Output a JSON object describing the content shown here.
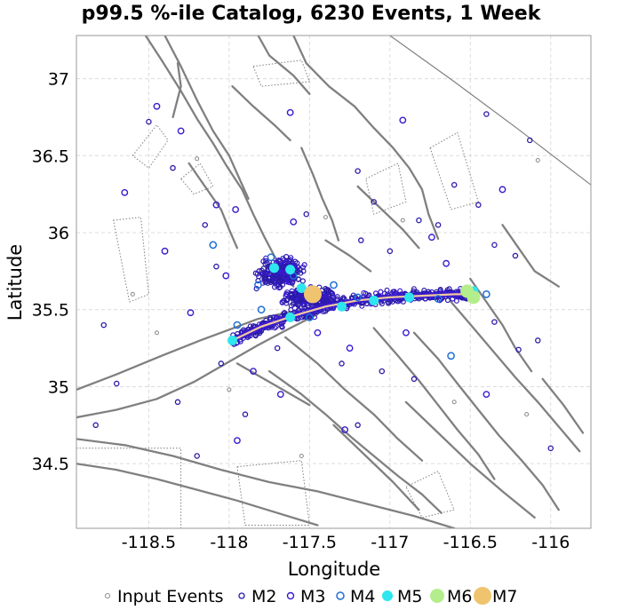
{
  "chart_data": {
    "type": "scatter",
    "title": "p99.5 %-ile Catalog, 6230 Events, 1 Week",
    "xlabel": "Longitude",
    "ylabel": "Latitude",
    "xlim": [
      -118.95,
      -115.75
    ],
    "ylim": [
      34.08,
      37.28
    ],
    "xticks": [
      -118.5,
      -118,
      -117.5,
      -117,
      -116.5,
      -116
    ],
    "yticks": [
      34.5,
      35,
      35.5,
      36,
      36.5,
      37
    ],
    "xtick_labels": [
      "-118.5",
      "-118",
      "-117.5",
      "-117",
      "-116.5",
      "-116"
    ],
    "ytick_labels": [
      "34.5",
      "35",
      "35.5",
      "36",
      "36.5",
      "37"
    ],
    "grid": true,
    "legend_placement": "bottom",
    "legend": [
      {
        "label": "Input Events",
        "marker": "small-open-circle",
        "color": "#888888"
      },
      {
        "label": "M2",
        "marker": "open-circle",
        "color": "#2a1aa8"
      },
      {
        "label": "M3",
        "marker": "open-circle",
        "color": "#3a1ad0"
      },
      {
        "label": "M4",
        "marker": "open-circle",
        "color": "#1e6fd8"
      },
      {
        "label": "M5",
        "marker": "filled-circle",
        "color": "#2ee6ee"
      },
      {
        "label": "M6",
        "marker": "filled-circle",
        "color": "#b4ee8c"
      },
      {
        "label": "M7",
        "marker": "filled-circle",
        "color": "#f0c46e"
      }
    ],
    "series": [
      {
        "name": "M7",
        "points": [
          [
            -117.48,
            35.6
          ]
        ]
      },
      {
        "name": "M6",
        "points": [
          [
            -116.48,
            35.58
          ],
          [
            -116.52,
            35.62
          ]
        ]
      },
      {
        "name": "M5",
        "points": [
          [
            -117.72,
            35.77
          ],
          [
            -117.62,
            35.76
          ],
          [
            -117.55,
            35.64
          ],
          [
            -117.62,
            35.45
          ],
          [
            -117.98,
            35.3
          ],
          [
            -116.48,
            35.62
          ],
          [
            -117.1,
            35.56
          ],
          [
            -116.88,
            35.58
          ],
          [
            -117.3,
            35.52
          ]
        ]
      },
      {
        "name": "M4",
        "points": [
          [
            -117.74,
            35.84
          ],
          [
            -117.6,
            35.72
          ],
          [
            -117.82,
            35.66
          ],
          [
            -117.95,
            35.4
          ],
          [
            -117.2,
            35.58
          ],
          [
            -116.7,
            35.57
          ],
          [
            -116.4,
            35.6
          ],
          [
            -116.62,
            35.2
          ],
          [
            -118.1,
            35.92
          ],
          [
            -117.35,
            35.66
          ],
          [
            -117.8,
            35.5
          ],
          [
            -117.5,
            35.45
          ]
        ]
      },
      {
        "name": "M3",
        "points": [
          [
            -118.3,
            36.66
          ],
          [
            -118.45,
            36.82
          ],
          [
            -117.62,
            36.78
          ],
          [
            -116.92,
            36.73
          ],
          [
            -116.3,
            36.28
          ],
          [
            -118.65,
            36.26
          ],
          [
            -118.08,
            36.18
          ],
          [
            -117.96,
            36.15
          ],
          [
            -117.6,
            36.07
          ],
          [
            -116.74,
            35.97
          ],
          [
            -118.4,
            35.88
          ],
          [
            -118.02,
            35.72
          ],
          [
            -117.68,
            34.95
          ],
          [
            -117.95,
            34.65
          ],
          [
            -117.85,
            35.1
          ],
          [
            -117.28,
            34.72
          ],
          [
            -116.4,
            34.95
          ],
          [
            -117.25,
            35.25
          ],
          [
            -116.9,
            35.35
          ],
          [
            -116.65,
            35.8
          ],
          [
            -118.24,
            35.48
          ],
          [
            -117.45,
            35.35
          ]
        ]
      },
      {
        "name": "M2",
        "points": [
          [
            -118.35,
            36.42
          ],
          [
            -118.5,
            36.72
          ],
          [
            -117.2,
            36.4
          ],
          [
            -116.6,
            36.31
          ],
          [
            -116.45,
            36.18
          ],
          [
            -116.13,
            36.6
          ],
          [
            -116.4,
            36.77
          ],
          [
            -118.78,
            35.4
          ],
          [
            -118.7,
            35.02
          ],
          [
            -118.32,
            34.9
          ],
          [
            -118.2,
            34.55
          ],
          [
            -117.9,
            34.82
          ],
          [
            -117.2,
            34.75
          ],
          [
            -116.0,
            34.6
          ],
          [
            -116.2,
            35.24
          ],
          [
            -116.08,
            35.3
          ],
          [
            -116.7,
            36.05
          ],
          [
            -118.83,
            34.75
          ],
          [
            -117.52,
            36.12
          ],
          [
            -117.1,
            36.2
          ],
          [
            -116.82,
            36.08
          ],
          [
            -118.15,
            36.05
          ],
          [
            -117.18,
            35.95
          ],
          [
            -116.35,
            35.92
          ],
          [
            -116.22,
            35.85
          ],
          [
            -118.08,
            35.78
          ],
          [
            -117.0,
            35.88
          ],
          [
            -116.85,
            35.05
          ],
          [
            -118.05,
            35.15
          ],
          [
            -117.05,
            35.1
          ],
          [
            -116.35,
            35.42
          ],
          [
            -117.7,
            35.25
          ],
          [
            -117.3,
            35.15
          ]
        ]
      },
      {
        "name": "Input Events",
        "points": [
          [
            -118.2,
            36.48
          ],
          [
            -116.08,
            36.47
          ],
          [
            -117.4,
            36.1
          ],
          [
            -116.92,
            36.08
          ],
          [
            -118.6,
            35.6
          ],
          [
            -118.0,
            34.98
          ],
          [
            -116.6,
            34.9
          ],
          [
            -116.15,
            34.82
          ],
          [
            -117.55,
            34.55
          ],
          [
            -118.45,
            35.35
          ]
        ]
      }
    ],
    "fault_traces": [
      [
        [
          -118.52,
          37.28
        ],
        [
          -118.42,
          37.12
        ],
        [
          -118.3,
          36.92
        ],
        [
          -118.2,
          36.74
        ],
        [
          -118.1,
          36.58
        ],
        [
          -118.02,
          36.44
        ],
        [
          -117.92,
          36.28
        ],
        [
          -117.85,
          36.12
        ],
        [
          -117.78,
          35.97
        ],
        [
          -117.72,
          35.85
        ],
        [
          -117.66,
          35.74
        ],
        [
          -117.6,
          35.65
        ]
      ],
      [
        [
          -118.4,
          37.28
        ],
        [
          -118.3,
          37.08
        ],
        [
          -118.2,
          36.86
        ],
        [
          -118.1,
          36.66
        ],
        [
          -118.0,
          36.5
        ],
        [
          -117.94,
          36.36
        ],
        [
          -117.88,
          36.22
        ]
      ],
      [
        [
          -117.6,
          37.28
        ],
        [
          -117.52,
          37.1
        ],
        [
          -117.38,
          36.95
        ],
        [
          -117.22,
          36.82
        ],
        [
          -117.1,
          36.68
        ],
        [
          -116.98,
          36.55
        ],
        [
          -116.88,
          36.42
        ],
        [
          -116.8,
          36.28
        ],
        [
          -116.76,
          36.12
        ],
        [
          -116.7,
          35.96
        ]
      ],
      [
        [
          -117.82,
          37.28
        ],
        [
          -117.75,
          37.15
        ],
        [
          -117.6,
          37.02
        ],
        [
          -117.5,
          36.9
        ]
      ],
      [
        [
          -118.25,
          36.45
        ],
        [
          -118.15,
          36.3
        ],
        [
          -118.05,
          36.15
        ],
        [
          -118.0,
          36.02
        ],
        [
          -117.95,
          35.9
        ]
      ],
      [
        [
          -117.98,
          36.95
        ],
        [
          -117.85,
          36.82
        ],
        [
          -117.72,
          36.7
        ],
        [
          -117.62,
          36.6
        ]
      ],
      [
        [
          -117.55,
          36.55
        ],
        [
          -117.48,
          36.38
        ],
        [
          -117.42,
          36.22
        ],
        [
          -117.36,
          36.08
        ],
        [
          -117.32,
          35.95
        ]
      ],
      [
        [
          -117.2,
          36.3
        ],
        [
          -117.05,
          36.15
        ],
        [
          -116.92,
          36.02
        ],
        [
          -116.82,
          35.9
        ]
      ],
      [
        [
          -118.95,
          34.98
        ],
        [
          -118.7,
          35.08
        ],
        [
          -118.42,
          35.2
        ],
        [
          -118.18,
          35.3
        ],
        [
          -118.0,
          35.37
        ],
        [
          -117.82,
          35.44
        ],
        [
          -117.6,
          35.49
        ],
        [
          -117.35,
          35.54
        ],
        [
          -117.1,
          35.58
        ],
        [
          -116.85,
          35.6
        ],
        [
          -116.62,
          35.61
        ],
        [
          -116.48,
          35.6
        ]
      ],
      [
        [
          -118.95,
          34.8
        ],
        [
          -118.7,
          34.85
        ],
        [
          -118.45,
          34.92
        ],
        [
          -118.22,
          35.03
        ],
        [
          -118.02,
          35.15
        ],
        [
          -117.82,
          35.27
        ],
        [
          -117.62,
          35.38
        ],
        [
          -117.45,
          35.47
        ]
      ],
      [
        [
          -118.95,
          34.66
        ],
        [
          -118.65,
          34.62
        ],
        [
          -118.35,
          34.55
        ],
        [
          -118.05,
          34.46
        ],
        [
          -117.75,
          34.38
        ],
        [
          -117.45,
          34.32
        ],
        [
          -117.15,
          34.24
        ],
        [
          -116.85,
          34.16
        ],
        [
          -116.6,
          34.08
        ]
      ],
      [
        [
          -118.95,
          34.5
        ],
        [
          -118.7,
          34.46
        ],
        [
          -118.45,
          34.4
        ],
        [
          -118.2,
          34.33
        ],
        [
          -117.95,
          34.26
        ],
        [
          -117.7,
          34.18
        ],
        [
          -117.45,
          34.1
        ]
      ],
      [
        [
          -117.75,
          35.1
        ],
        [
          -117.55,
          34.95
        ],
        [
          -117.4,
          34.82
        ],
        [
          -117.25,
          34.68
        ],
        [
          -117.1,
          34.55
        ],
        [
          -116.95,
          34.42
        ],
        [
          -116.8,
          34.3
        ],
        [
          -116.68,
          34.18
        ]
      ],
      [
        [
          -117.65,
          35.32
        ],
        [
          -117.45,
          35.15
        ],
        [
          -117.28,
          34.98
        ],
        [
          -117.1,
          34.82
        ],
        [
          -116.95,
          34.66
        ],
        [
          -116.8,
          34.52
        ]
      ],
      [
        [
          -117.1,
          35.38
        ],
        [
          -116.95,
          35.2
        ],
        [
          -116.82,
          35.04
        ],
        [
          -116.7,
          34.88
        ],
        [
          -116.58,
          34.72
        ],
        [
          -116.45,
          34.56
        ],
        [
          -116.35,
          34.4
        ]
      ],
      [
        [
          -116.85,
          35.35
        ],
        [
          -116.7,
          35.18
        ],
        [
          -116.58,
          35.02
        ],
        [
          -116.45,
          34.85
        ],
        [
          -116.32,
          34.68
        ],
        [
          -116.18,
          34.52
        ],
        [
          -116.05,
          34.36
        ],
        [
          -115.95,
          34.2
        ]
      ],
      [
        [
          -116.62,
          35.55
        ],
        [
          -116.48,
          35.38
        ],
        [
          -116.35,
          35.22
        ],
        [
          -116.22,
          35.06
        ],
        [
          -116.08,
          34.9
        ],
        [
          -115.95,
          34.74
        ],
        [
          -115.82,
          34.58
        ]
      ],
      [
        [
          -116.5,
          35.7
        ],
        [
          -116.4,
          35.55
        ],
        [
          -116.3,
          35.4
        ],
        [
          -116.22,
          35.25
        ],
        [
          -116.12,
          35.1
        ]
      ],
      [
        [
          -116.9,
          34.9
        ],
        [
          -116.7,
          34.7
        ],
        [
          -116.5,
          34.5
        ],
        [
          -116.3,
          34.32
        ],
        [
          -116.1,
          34.15
        ]
      ],
      [
        [
          -117.35,
          34.75
        ],
        [
          -117.15,
          34.55
        ],
        [
          -116.98,
          34.38
        ],
        [
          -116.82,
          34.2
        ]
      ],
      [
        [
          -117.95,
          35.15
        ],
        [
          -117.7,
          35.0
        ],
        [
          -117.5,
          34.88
        ]
      ],
      [
        [
          -116.05,
          35.05
        ],
        [
          -115.92,
          34.88
        ],
        [
          -115.8,
          34.7
        ]
      ],
      [
        [
          -116.3,
          36.05
        ],
        [
          -116.2,
          35.9
        ],
        [
          -116.1,
          35.75
        ],
        [
          -115.95,
          35.65
        ]
      ],
      [
        [
          -118.35,
          36.75
        ],
        [
          -118.3,
          36.95
        ],
        [
          -118.32,
          37.1
        ]
      ],
      [
        [
          -117.4,
          35.95
        ],
        [
          -117.25,
          35.85
        ],
        [
          -117.12,
          35.75
        ]
      ]
    ],
    "garlock_shear_line": [
      [
        -117.0,
        37.28
      ],
      [
        -116.6,
        36.98
      ],
      [
        -116.2,
        36.67
      ],
      [
        -115.75,
        36.31
      ]
    ],
    "dotted_zones": [
      [
        [
          -118.6,
          36.5
        ],
        [
          -118.45,
          36.7
        ],
        [
          -118.38,
          36.6
        ],
        [
          -118.5,
          36.42
        ]
      ],
      [
        [
          -118.72,
          36.08
        ],
        [
          -118.55,
          36.1
        ],
        [
          -118.5,
          35.6
        ],
        [
          -118.62,
          35.55
        ]
      ],
      [
        [
          -117.85,
          37.08
        ],
        [
          -117.55,
          37.12
        ],
        [
          -117.5,
          36.98
        ],
        [
          -117.8,
          36.95
        ]
      ],
      [
        [
          -117.15,
          36.35
        ],
        [
          -116.95,
          36.45
        ],
        [
          -116.9,
          36.2
        ],
        [
          -117.1,
          36.12
        ]
      ],
      [
        [
          -116.75,
          36.55
        ],
        [
          -116.58,
          36.65
        ],
        [
          -116.45,
          36.2
        ],
        [
          -116.62,
          36.15
        ]
      ],
      [
        [
          -118.95,
          34.6
        ],
        [
          -118.3,
          34.6
        ],
        [
          -118.3,
          34.08
        ],
        [
          -118.95,
          34.08
        ]
      ],
      [
        [
          -117.95,
          34.48
        ],
        [
          -117.55,
          34.52
        ],
        [
          -117.5,
          34.1
        ],
        [
          -117.9,
          34.1
        ]
      ],
      [
        [
          -116.9,
          34.35
        ],
        [
          -116.7,
          34.45
        ],
        [
          -116.6,
          34.2
        ],
        [
          -116.8,
          34.15
        ]
      ],
      [
        [
          -118.3,
          36.35
        ],
        [
          -118.18,
          36.45
        ],
        [
          -118.1,
          36.3
        ],
        [
          -118.22,
          36.25
        ]
      ]
    ],
    "main_rupture": [
      [
        -117.98,
        35.3
      ],
      [
        -117.8,
        35.39
      ],
      [
        -117.6,
        35.46
      ],
      [
        -117.4,
        35.52
      ],
      [
        -117.2,
        35.56
      ],
      [
        -117.0,
        35.58
      ],
      [
        -116.8,
        35.59
      ],
      [
        -116.6,
        35.6
      ],
      [
        -116.48,
        35.6
      ]
    ],
    "cluster_nw": {
      "center": [
        -117.68,
        35.74
      ],
      "spread": [
        0.18,
        0.12
      ]
    },
    "cluster_mid": {
      "center": [
        -117.5,
        35.58
      ],
      "spread": [
        0.22,
        0.08
      ]
    }
  },
  "colors": {
    "m2": "#2a1aa8",
    "m3": "#3a1ad0",
    "m4": "#1e6fd8",
    "m5": "#2ee6ee",
    "m6": "#b4ee8c",
    "m7": "#f0c46e",
    "fault": "#808080",
    "input": "#888888",
    "grid": "#dcdcdc"
  }
}
